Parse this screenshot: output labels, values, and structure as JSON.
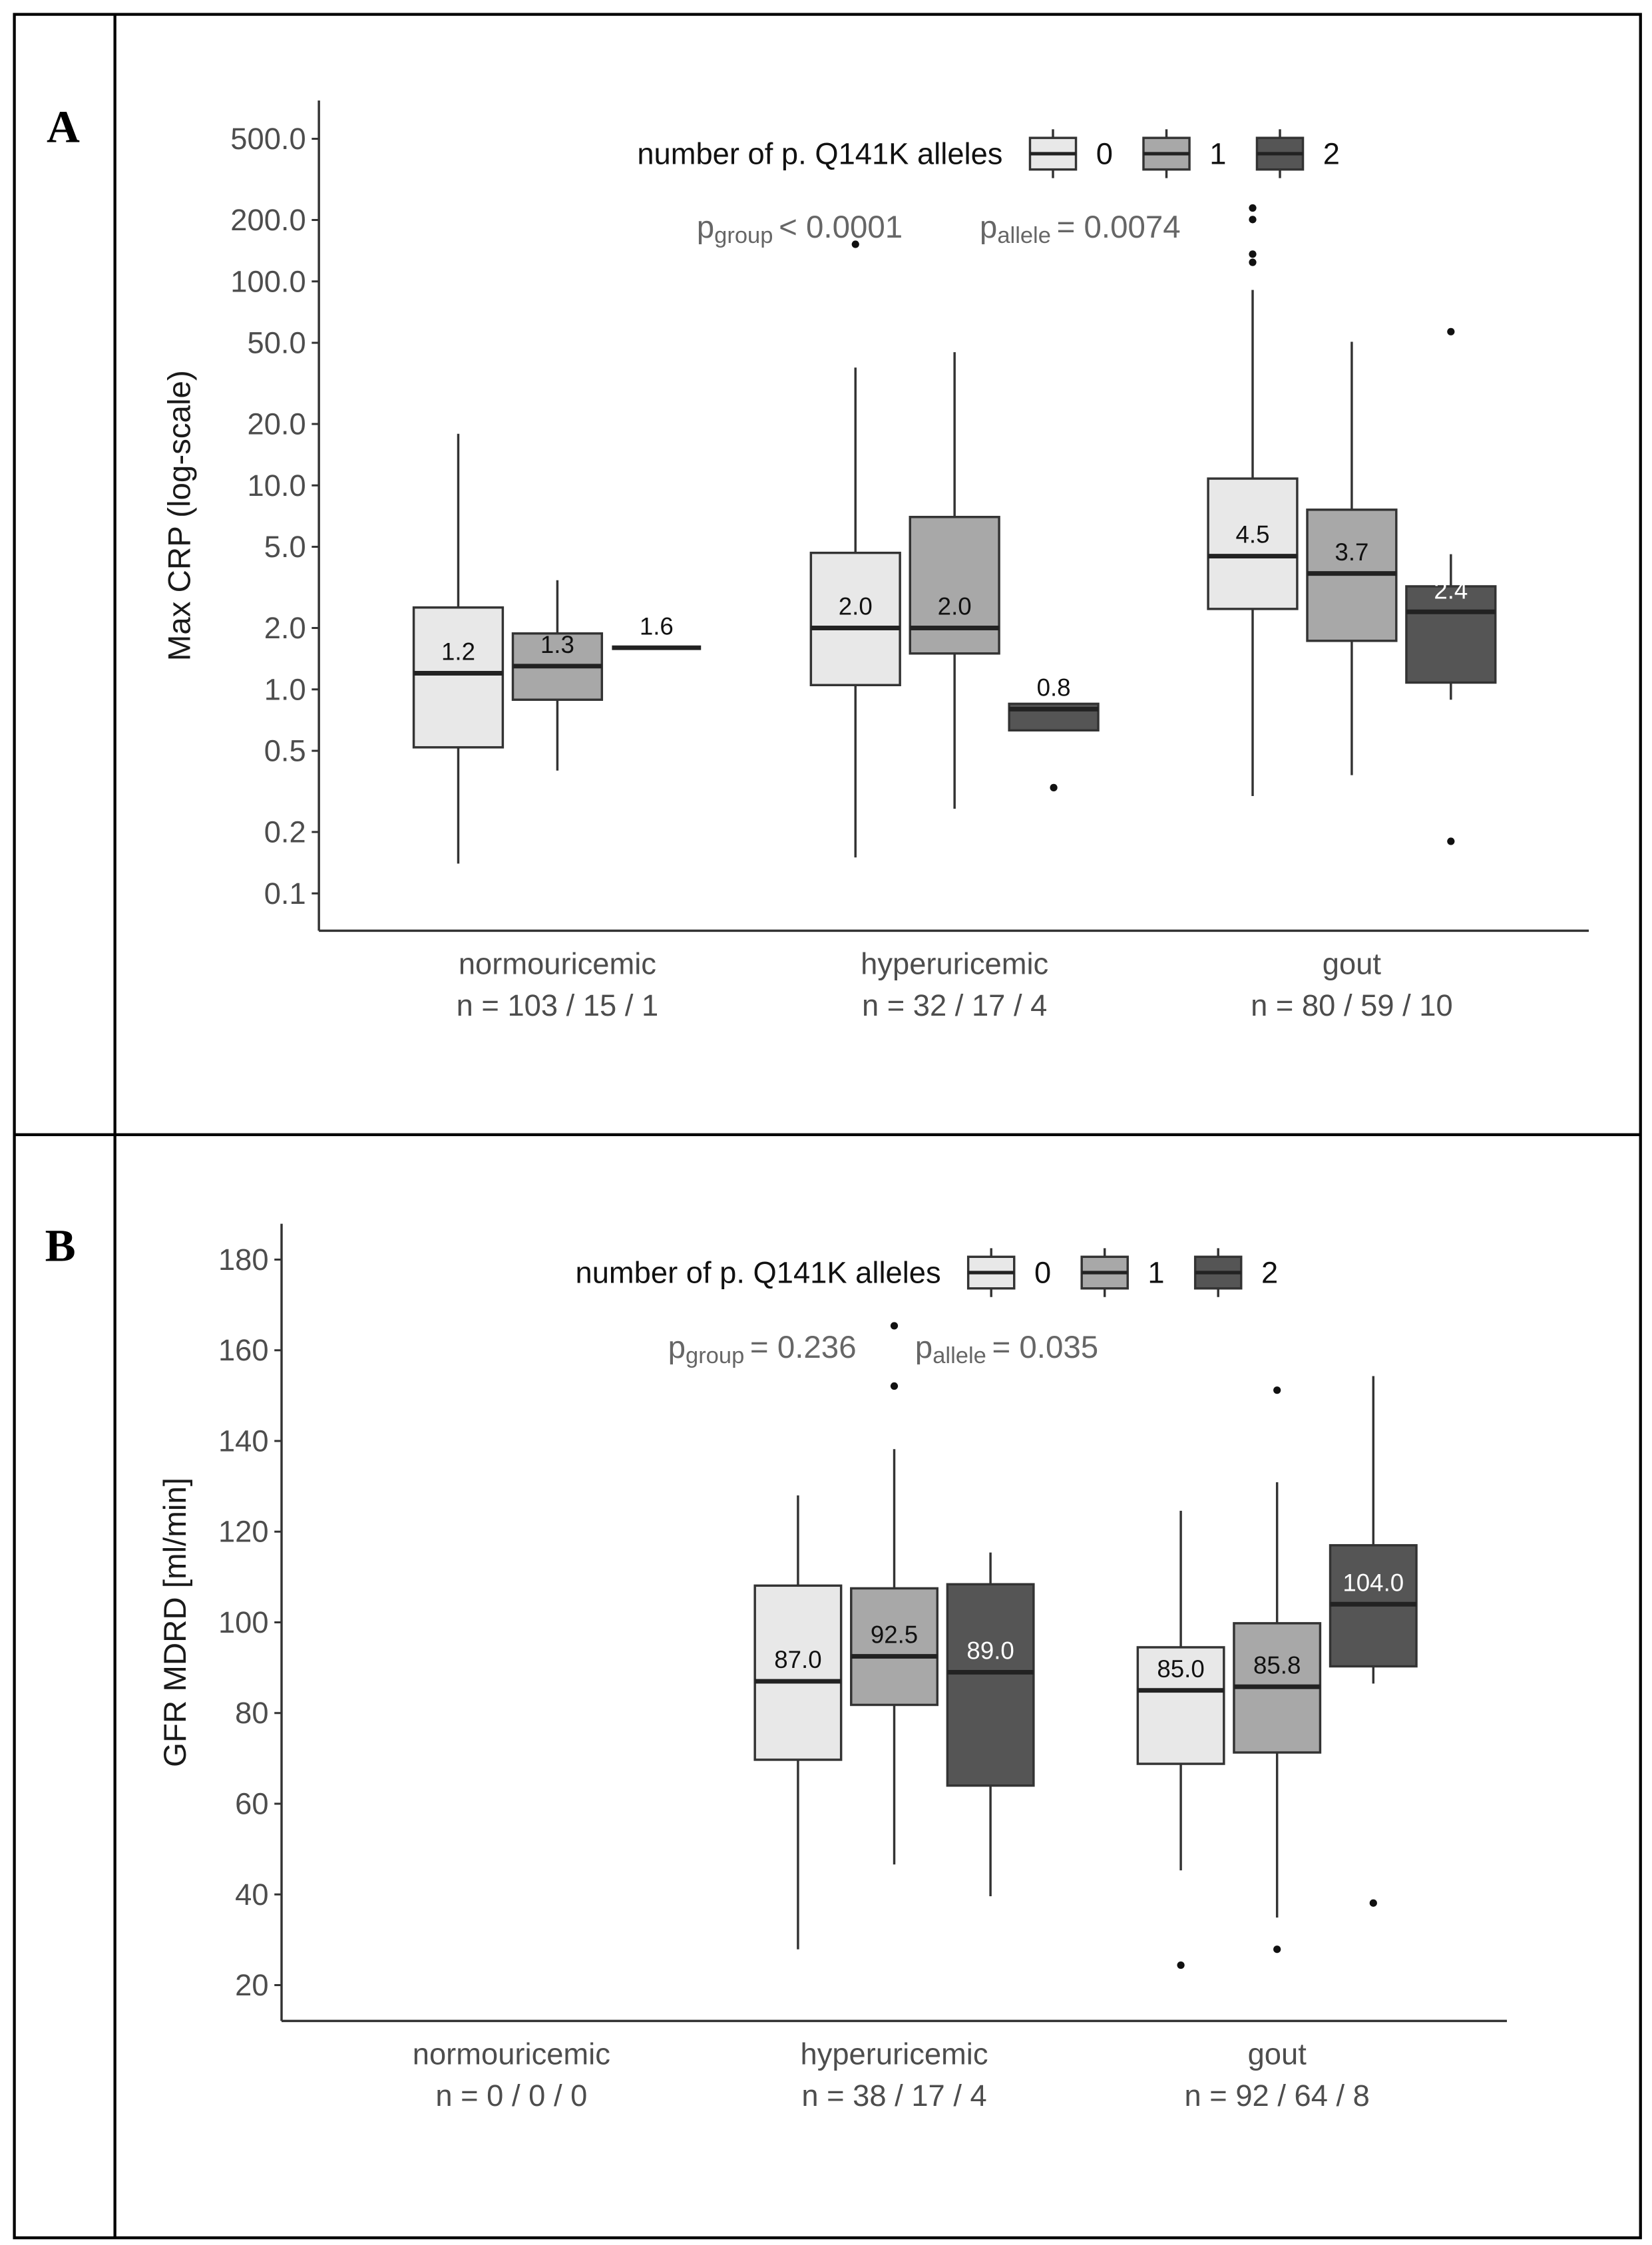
{
  "panel_labels": [
    "A",
    "B"
  ],
  "chart_data": [
    {
      "type": "box",
      "yscale": "log",
      "y_label": "Max CRP (log-scale)",
      "legend_title": "number of p. Q141K alleles",
      "annotations": [
        {
          "symbol": "p",
          "subscript": "group",
          "text": "< 0.0001"
        },
        {
          "symbol": "p",
          "subscript": "allele",
          "text": "= 0.0074"
        }
      ],
      "categories": [
        "normouricemic",
        "hyperuricemic",
        "gout"
      ],
      "category_sublabels": [
        "n = 103 / 15 / 1",
        "n = 32 / 17 / 4",
        "n = 80 / 59 / 10"
      ],
      "ylim": [
        0.0656,
        770
      ],
      "yticks": [
        0.1,
        0.2,
        0.5,
        {
          "value": 1,
          "label": "1.0"
        },
        {
          "value": 2,
          "label": "2.0"
        },
        {
          "value": 5,
          "label": "5.0"
        },
        {
          "value": 10,
          "label": "10.0"
        },
        {
          "value": 20,
          "label": "20.0"
        },
        {
          "value": 50,
          "label": "50.0"
        },
        {
          "value": 100,
          "label": "100.0"
        },
        {
          "value": 200,
          "label": "200.0"
        },
        {
          "value": 500,
          "label": "500.0"
        }
      ],
      "series": [
        {
          "name": "0",
          "color": "#e8e8e8",
          "low": [
            0.14,
            0.15,
            0.3
          ],
          "q1": [
            0.52,
            1.05,
            2.48
          ],
          "median": [
            1.2,
            2.0,
            4.5
          ],
          "q3": [
            2.52,
            4.67,
            10.8
          ],
          "high": [
            17.9,
            37.8,
            90.8
          ],
          "outliers": [
            [],
            [
              152
            ],
            [
              229,
              201,
              136,
              124
            ]
          ],
          "median_labels": [
            "1.2",
            "2.0",
            "4.5"
          ]
        },
        {
          "name": "1",
          "color": "#a8a8a8",
          "low": [
            0.4,
            0.26,
            0.38
          ],
          "q1": [
            0.89,
            1.5,
            1.73
          ],
          "median": [
            1.3,
            2.0,
            3.7
          ],
          "q3": [
            1.88,
            7.0,
            7.6
          ],
          "high": [
            3.43,
            45,
            50.6
          ],
          "outliers": [
            [],
            [],
            []
          ],
          "median_labels": [
            "1.3",
            "2.0",
            "3.7"
          ]
        },
        {
          "name": "2",
          "color": "#555555",
          "low": [
            1.6,
            0.63,
            0.89
          ],
          "q1": [
            1.6,
            0.63,
            1.08
          ],
          "median": [
            1.6,
            0.8,
            2.4
          ],
          "q3": [
            1.6,
            0.85,
            3.2
          ],
          "high": [
            1.6,
            0.85,
            4.6
          ],
          "outliers": [
            [],
            [
              0.33
            ],
            [
              56.7,
              0.18
            ]
          ],
          "median_labels": [
            "1.6",
            "0.8",
            "2.4"
          ]
        }
      ]
    },
    {
      "type": "box",
      "yscale": "linear",
      "y_label": "GFR MDRD [ml/min]",
      "legend_title": "number of p. Q141K alleles",
      "annotations": [
        {
          "symbol": "p",
          "subscript": "group",
          "text": "= 0.236"
        },
        {
          "symbol": "p",
          "subscript": "allele",
          "text": "= 0.035"
        }
      ],
      "categories": [
        "normouricemic",
        "hyperuricemic",
        "gout"
      ],
      "category_sublabels": [
        "n = 0 / 0 / 0",
        "n = 38 / 17 / 4",
        "n = 92 / 64 / 8"
      ],
      "ylim": [
        12.1,
        187.9
      ],
      "yticks": [
        20,
        40,
        60,
        80,
        100,
        120,
        140,
        160,
        180
      ],
      "series": [
        {
          "name": "0",
          "color": "#e8e8e8",
          "low": [
            null,
            27.9,
            45.3
          ],
          "q1": [
            null,
            69.7,
            68.8
          ],
          "median": [
            null,
            87.0,
            85.0
          ],
          "q3": [
            null,
            108.1,
            94.5
          ],
          "high": [
            null,
            128,
            124.6
          ],
          "outliers": [
            [],
            [],
            [
              24.4
            ]
          ],
          "median_labels": [
            null,
            "87.0",
            "85.0"
          ]
        },
        {
          "name": "1",
          "color": "#a8a8a8",
          "low": [
            null,
            46.6,
            34.9
          ],
          "q1": [
            null,
            81.8,
            71.3
          ],
          "median": [
            null,
            92.5,
            85.8
          ],
          "q3": [
            null,
            107.5,
            99.8
          ],
          "high": [
            null,
            138.2,
            130.9
          ],
          "outliers": [
            [],
            [
              165.4,
              152.1
            ],
            [
              151.2,
              27.9
            ]
          ],
          "median_labels": [
            null,
            "92.5",
            "85.8"
          ]
        },
        {
          "name": "2",
          "color": "#555555",
          "low": [
            null,
            39.6,
            86.5
          ],
          "q1": [
            null,
            64.0,
            90.3
          ],
          "median": [
            null,
            89.0,
            104.0
          ],
          "q3": [
            null,
            108.4,
            117.0
          ],
          "high": [
            null,
            115.4,
            154.3
          ],
          "outliers": [
            [],
            [],
            [
              38.1
            ]
          ],
          "median_labels": [
            null,
            "89.0",
            "104.0"
          ]
        }
      ]
    }
  ]
}
